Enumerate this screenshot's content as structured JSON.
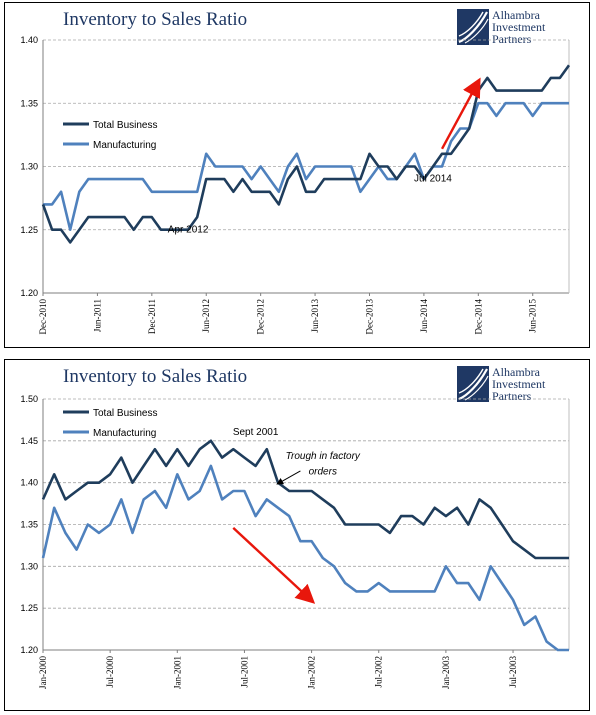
{
  "chart_data": [
    {
      "type": "line",
      "title": "Inventory to Sales Ratio",
      "logo_lines": [
        "Alhambra",
        "Investment",
        "Partners"
      ],
      "x": [
        "Dec-2010",
        "Jan-2011",
        "Feb-2011",
        "Mar-2011",
        "Apr-2011",
        "May-2011",
        "Jun-2011",
        "Jul-2011",
        "Aug-2011",
        "Sep-2011",
        "Oct-2011",
        "Nov-2011",
        "Dec-2011",
        "Jan-2012",
        "Feb-2012",
        "Mar-2012",
        "Apr-2012",
        "May-2012",
        "Jun-2012",
        "Jul-2012",
        "Aug-2012",
        "Sep-2012",
        "Oct-2012",
        "Nov-2012",
        "Dec-2012",
        "Jan-2013",
        "Feb-2013",
        "Mar-2013",
        "Apr-2013",
        "May-2013",
        "Jun-2013",
        "Jul-2013",
        "Aug-2013",
        "Sep-2013",
        "Oct-2013",
        "Nov-2013",
        "Dec-2013",
        "Jan-2014",
        "Feb-2014",
        "Mar-2014",
        "Apr-2014",
        "May-2014",
        "Jun-2014",
        "Jul-2014",
        "Aug-2014",
        "Sep-2014",
        "Oct-2014",
        "Nov-2014",
        "Dec-2014",
        "Jan-2015",
        "Feb-2015",
        "Mar-2015",
        "Apr-2015",
        "May-2015",
        "Jun-2015",
        "Jul-2015",
        "Aug-2015",
        "Sep-2015",
        "Oct-2015"
      ],
      "xticks": [
        "Dec-2010",
        "Jun-2011",
        "Dec-2011",
        "Jun-2012",
        "Dec-2012",
        "Jun-2013",
        "Dec-2013",
        "Jun-2014",
        "Dec-2014",
        "Jun-2015"
      ],
      "ylim": [
        1.2,
        1.4
      ],
      "yticks": [
        "1.20",
        "1.25",
        "1.30",
        "1.35",
        "1.40"
      ],
      "grid": "horizontal dashed",
      "legend_position": "upper-left",
      "series": [
        {
          "name": "Total Business",
          "color": "#1f3d5c",
          "values": [
            1.27,
            1.25,
            1.25,
            1.24,
            1.25,
            1.26,
            1.26,
            1.26,
            1.26,
            1.26,
            1.25,
            1.26,
            1.26,
            1.25,
            1.25,
            1.25,
            1.25,
            1.26,
            1.29,
            1.29,
            1.29,
            1.28,
            1.29,
            1.28,
            1.28,
            1.28,
            1.27,
            1.29,
            1.3,
            1.28,
            1.28,
            1.29,
            1.29,
            1.29,
            1.29,
            1.29,
            1.31,
            1.3,
            1.3,
            1.29,
            1.3,
            1.3,
            1.29,
            1.3,
            1.31,
            1.31,
            1.32,
            1.33,
            1.36,
            1.37,
            1.36,
            1.36,
            1.36,
            1.36,
            1.36,
            1.36,
            1.37,
            1.37,
            1.38
          ]
        },
        {
          "name": "Manufacturing",
          "color": "#4f81bd",
          "values": [
            1.27,
            1.27,
            1.28,
            1.25,
            1.28,
            1.29,
            1.29,
            1.29,
            1.29,
            1.29,
            1.29,
            1.29,
            1.28,
            1.28,
            1.28,
            1.28,
            1.28,
            1.28,
            1.31,
            1.3,
            1.3,
            1.3,
            1.3,
            1.29,
            1.3,
            1.29,
            1.28,
            1.3,
            1.31,
            1.29,
            1.3,
            1.3,
            1.3,
            1.3,
            1.3,
            1.28,
            1.29,
            1.3,
            1.29,
            1.29,
            1.3,
            1.31,
            1.29,
            1.3,
            1.3,
            1.32,
            1.33,
            1.33,
            1.35,
            1.35,
            1.34,
            1.35,
            1.35,
            1.35,
            1.34,
            1.35,
            1.35,
            1.35,
            1.35
          ]
        }
      ],
      "annotations": [
        {
          "text": "Apr 2012",
          "x": "Apr-2012",
          "y": 1.248
        },
        {
          "text": "Jul 2014",
          "x": "Jul-2014",
          "y": 1.288
        }
      ],
      "arrow": {
        "color": "#e8170c",
        "from": {
          "x": "Aug-2014",
          "y": 1.314
        },
        "to": {
          "x": "Dec-2014",
          "y": 1.367
        }
      }
    },
    {
      "type": "line",
      "title": "Inventory to Sales Ratio",
      "logo_lines": [
        "Alhambra",
        "Investment",
        "Partners"
      ],
      "x": [
        "Jan-2000",
        "Feb-2000",
        "Mar-2000",
        "Apr-2000",
        "May-2000",
        "Jun-2000",
        "Jul-2000",
        "Aug-2000",
        "Sep-2000",
        "Oct-2000",
        "Nov-2000",
        "Dec-2000",
        "Jan-2001",
        "Feb-2001",
        "Mar-2001",
        "Apr-2001",
        "May-2001",
        "Jun-2001",
        "Jul-2001",
        "Aug-2001",
        "Sep-2001",
        "Oct-2001",
        "Nov-2001",
        "Dec-2001",
        "Jan-2002",
        "Feb-2002",
        "Mar-2002",
        "Apr-2002",
        "May-2002",
        "Jun-2002",
        "Jul-2002",
        "Aug-2002",
        "Sep-2002",
        "Oct-2002",
        "Nov-2002",
        "Dec-2002",
        "Jan-2003",
        "Feb-2003",
        "Mar-2003",
        "Apr-2003",
        "May-2003",
        "Jun-2003",
        "Jul-2003",
        "Aug-2003",
        "Sep-2003",
        "Oct-2003",
        "Nov-2003",
        "Dec-2003"
      ],
      "xticks": [
        "Jan-2000",
        "Jul-2000",
        "Jan-2001",
        "Jul-2001",
        "Jan-2002",
        "Jul-2002",
        "Jan-2003",
        "Jul-2003"
      ],
      "ylim": [
        1.2,
        1.5
      ],
      "yticks": [
        "1.20",
        "1.25",
        "1.30",
        "1.35",
        "1.40",
        "1.45",
        "1.50"
      ],
      "grid": "horizontal dashed",
      "legend_position": "upper-left",
      "series": [
        {
          "name": "Total Business",
          "color": "#1f3d5c",
          "values": [
            1.38,
            1.41,
            1.38,
            1.39,
            1.4,
            1.4,
            1.41,
            1.43,
            1.4,
            1.42,
            1.44,
            1.42,
            1.44,
            1.42,
            1.44,
            1.45,
            1.43,
            1.44,
            1.43,
            1.42,
            1.44,
            1.4,
            1.39,
            1.39,
            1.39,
            1.38,
            1.37,
            1.35,
            1.35,
            1.35,
            1.35,
            1.34,
            1.36,
            1.36,
            1.35,
            1.37,
            1.36,
            1.37,
            1.35,
            1.38,
            1.37,
            1.35,
            1.33,
            1.32,
            1.31,
            1.31,
            1.31,
            1.31
          ]
        },
        {
          "name": "Manufacturing",
          "color": "#4f81bd",
          "values": [
            1.31,
            1.37,
            1.34,
            1.32,
            1.35,
            1.34,
            1.35,
            1.38,
            1.34,
            1.38,
            1.39,
            1.37,
            1.41,
            1.38,
            1.39,
            1.42,
            1.38,
            1.39,
            1.39,
            1.36,
            1.38,
            1.37,
            1.36,
            1.33,
            1.33,
            1.31,
            1.3,
            1.28,
            1.27,
            1.27,
            1.28,
            1.27,
            1.27,
            1.27,
            1.27,
            1.27,
            1.3,
            1.28,
            1.28,
            1.26,
            1.3,
            1.28,
            1.26,
            1.23,
            1.24,
            1.21,
            1.2,
            1.2
          ]
        }
      ],
      "annotations": [
        {
          "text": "Sept 2001",
          "x": "Aug-2001",
          "y": 1.457
        },
        {
          "text": "Trough in factory",
          "x": "Feb-2002",
          "y": 1.428
        },
        {
          "text": "orders",
          "x": "Feb-2002",
          "y": 1.41
        }
      ],
      "pointer": {
        "from": {
          "x": "Dec-2001",
          "y": 1.414
        },
        "to": {
          "x": "Oct-2001",
          "y": 1.399
        }
      },
      "arrow": {
        "color": "#e8170c",
        "from": {
          "x": "Jun-2001",
          "y": 1.346
        },
        "to": {
          "x": "Jan-2002",
          "y": 1.259
        }
      }
    }
  ]
}
